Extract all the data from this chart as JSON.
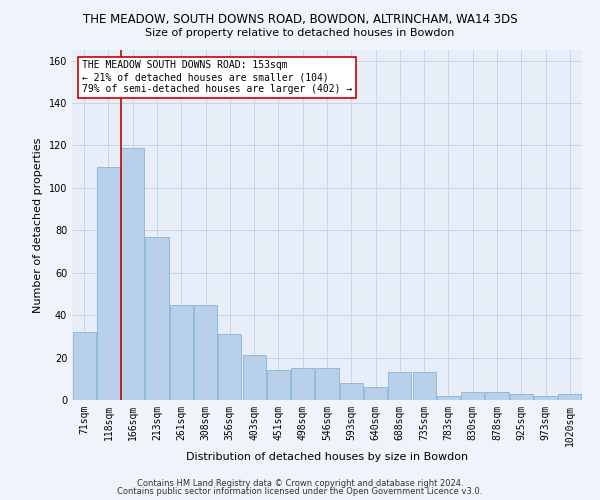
{
  "title": "THE MEADOW, SOUTH DOWNS ROAD, BOWDON, ALTRINCHAM, WA14 3DS",
  "subtitle": "Size of property relative to detached houses in Bowdon",
  "xlabel": "Distribution of detached houses by size in Bowdon",
  "ylabel": "Number of detached properties",
  "footnote1": "Contains HM Land Registry data © Crown copyright and database right 2024.",
  "footnote2": "Contains public sector information licensed under the Open Government Licence v3.0.",
  "categories": [
    "71sqm",
    "118sqm",
    "166sqm",
    "213sqm",
    "261sqm",
    "308sqm",
    "356sqm",
    "403sqm",
    "451sqm",
    "498sqm",
    "546sqm",
    "593sqm",
    "640sqm",
    "688sqm",
    "735sqm",
    "783sqm",
    "830sqm",
    "878sqm",
    "925sqm",
    "973sqm",
    "1020sqm"
  ],
  "values": [
    32,
    110,
    119,
    77,
    45,
    45,
    31,
    21,
    14,
    15,
    15,
    8,
    6,
    13,
    13,
    2,
    4,
    4,
    3,
    2,
    3
  ],
  "bar_color": "#b8d0ea",
  "bar_edge_color": "#7aadd4",
  "grid_color": "#c5d5e8",
  "background_color": "#e8eef8",
  "bg_figure_color": "#f0f4fa",
  "vline_x": 1.5,
  "vline_color": "#cc0000",
  "annotation_text": "THE MEADOW SOUTH DOWNS ROAD: 153sqm\n← 21% of detached houses are smaller (104)\n79% of semi-detached houses are larger (402) →",
  "annotation_box_color": "#ffffff",
  "annotation_box_edge": "#cc0000",
  "ylim": [
    0,
    165
  ],
  "yticks": [
    0,
    20,
    40,
    60,
    80,
    100,
    120,
    140,
    160
  ],
  "title_fontsize": 8.5,
  "subtitle_fontsize": 8,
  "ylabel_fontsize": 8,
  "xlabel_fontsize": 8,
  "tick_fontsize": 7,
  "annot_fontsize": 7,
  "footnote_fontsize": 6
}
